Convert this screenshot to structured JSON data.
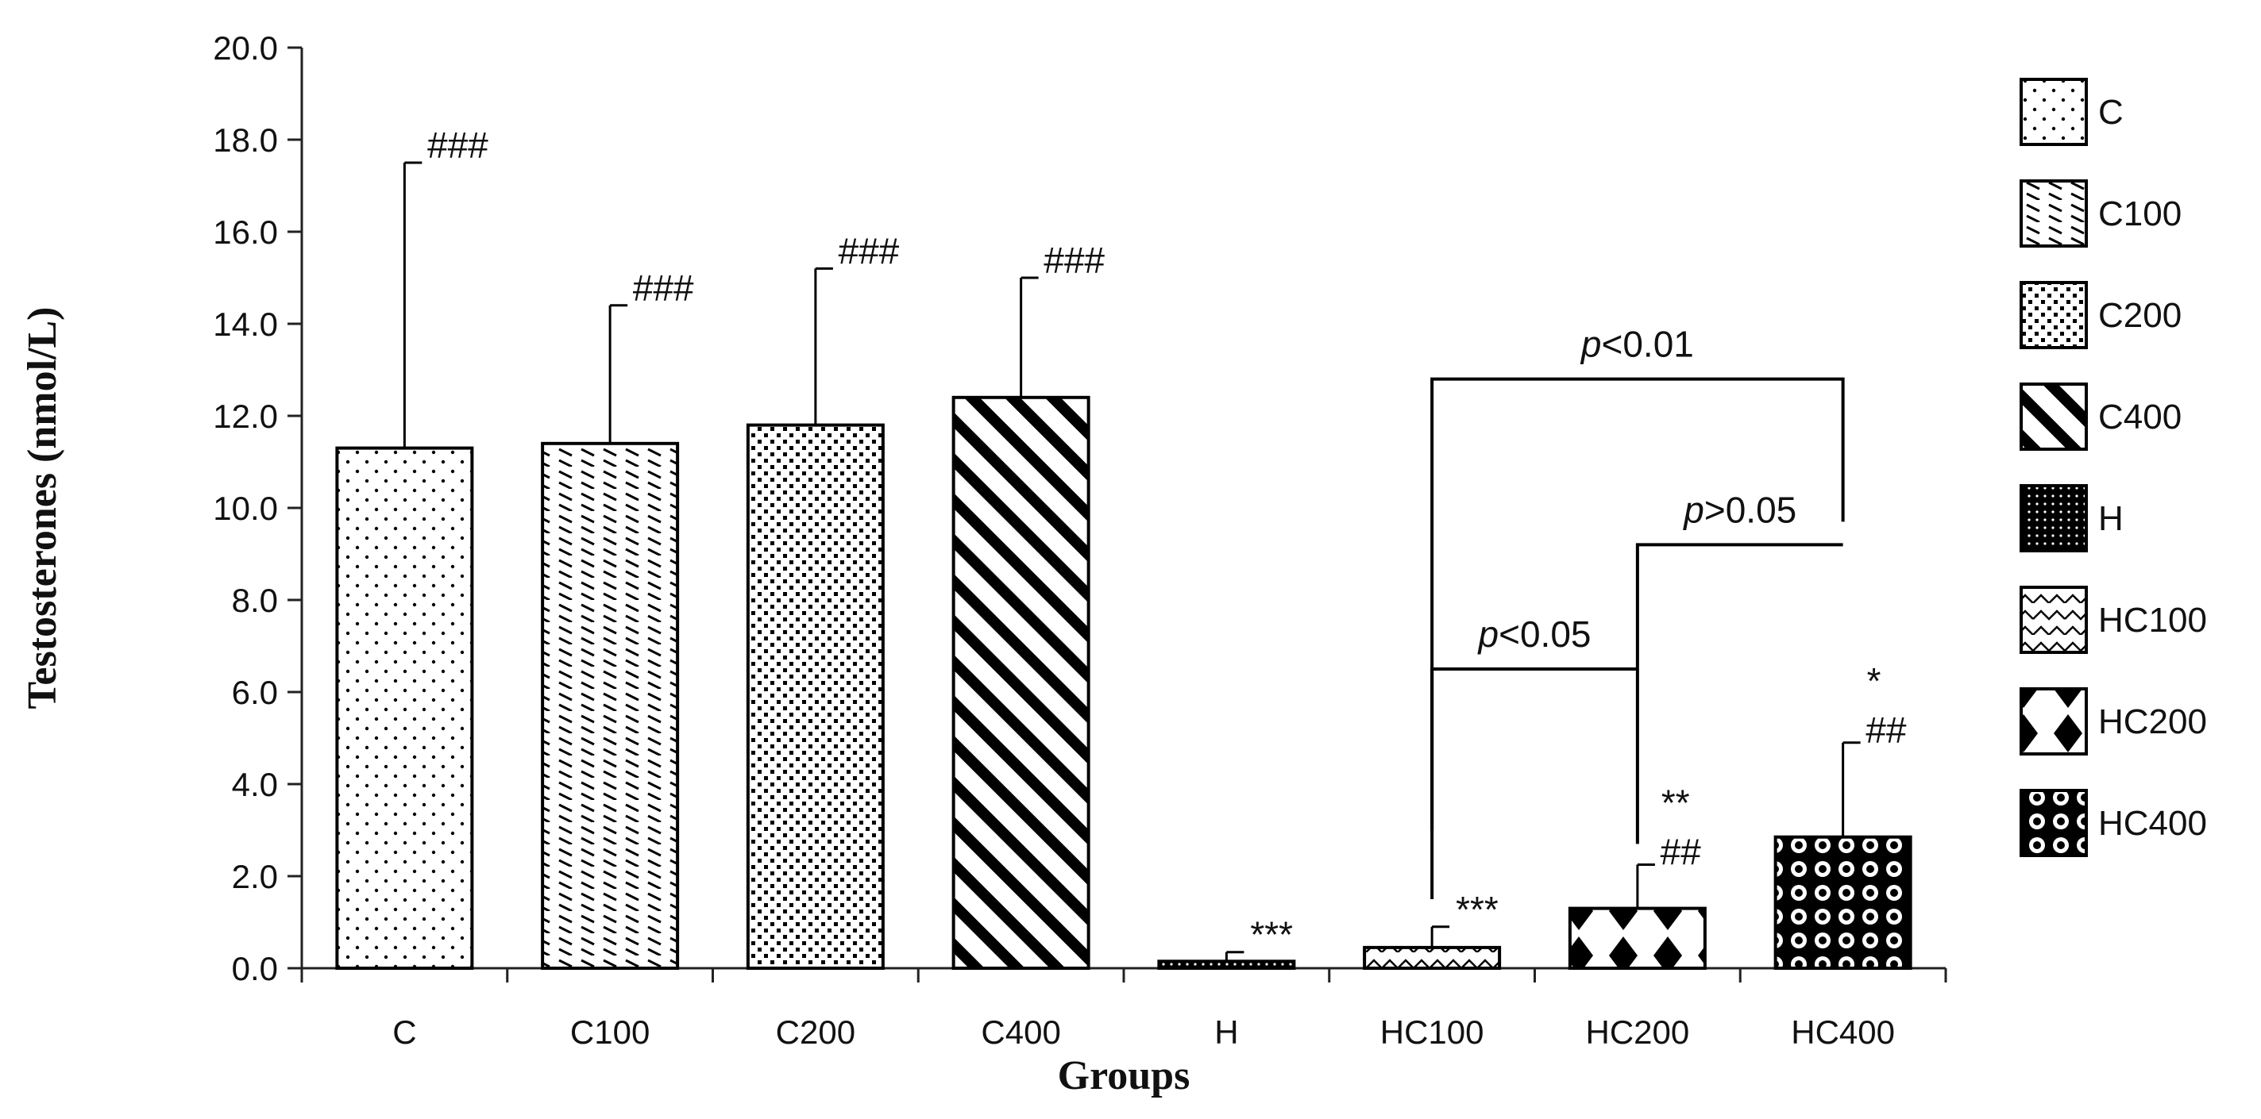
{
  "chart_data": {
    "type": "bar",
    "xlabel": "Groups",
    "ylabel": "Testosterones (nmol/L)",
    "ylim": [
      0,
      20
    ],
    "ytick_step": 2,
    "ytick_labels": [
      "0.0",
      "2.0",
      "4.0",
      "6.0",
      "8.0",
      "10.0",
      "12.0",
      "14.0",
      "16.0",
      "18.0",
      "20.0"
    ],
    "grid": false,
    "legend_position": "right",
    "categories": [
      "C",
      "C100",
      "C200",
      "C400",
      "H",
      "HC100",
      "HC200",
      "HC400"
    ],
    "values": [
      11.3,
      11.4,
      11.8,
      12.4,
      0.15,
      0.45,
      1.3,
      2.85
    ],
    "errors": [
      6.2,
      3.0,
      3.4,
      2.6,
      0.2,
      0.45,
      0.95,
      2.05
    ],
    "patterns": [
      "dots-sparse",
      "diag-dash",
      "dots-dense",
      "diag-wide",
      "grid-dark",
      "zigzag",
      "diamonds",
      "circles"
    ],
    "annotations": [
      {
        "category": "C",
        "lines": [
          "###"
        ]
      },
      {
        "category": "C100",
        "lines": [
          "###"
        ]
      },
      {
        "category": "C200",
        "lines": [
          "###"
        ]
      },
      {
        "category": "C400",
        "lines": [
          "###"
        ]
      },
      {
        "category": "H",
        "lines": [
          "***"
        ]
      },
      {
        "category": "HC100",
        "lines": [
          "***"
        ]
      },
      {
        "category": "HC200",
        "lines": [
          "**",
          "##"
        ]
      },
      {
        "category": "HC400",
        "lines": [
          "*",
          "##"
        ]
      }
    ],
    "brackets": [
      {
        "from": "HC100",
        "to": "HC400",
        "label_italic": "p",
        "label_rest": "<0.01"
      },
      {
        "from": "HC200",
        "to": "HC400",
        "label_italic": "p",
        "label_rest": ">0.05"
      },
      {
        "from": "HC100",
        "to": "HC200",
        "label_italic": "p",
        "label_rest": "<0.05"
      }
    ],
    "legend": [
      "C",
      "C100",
      "C200",
      "C400",
      "H",
      "HC100",
      "HC200",
      "HC400"
    ]
  }
}
